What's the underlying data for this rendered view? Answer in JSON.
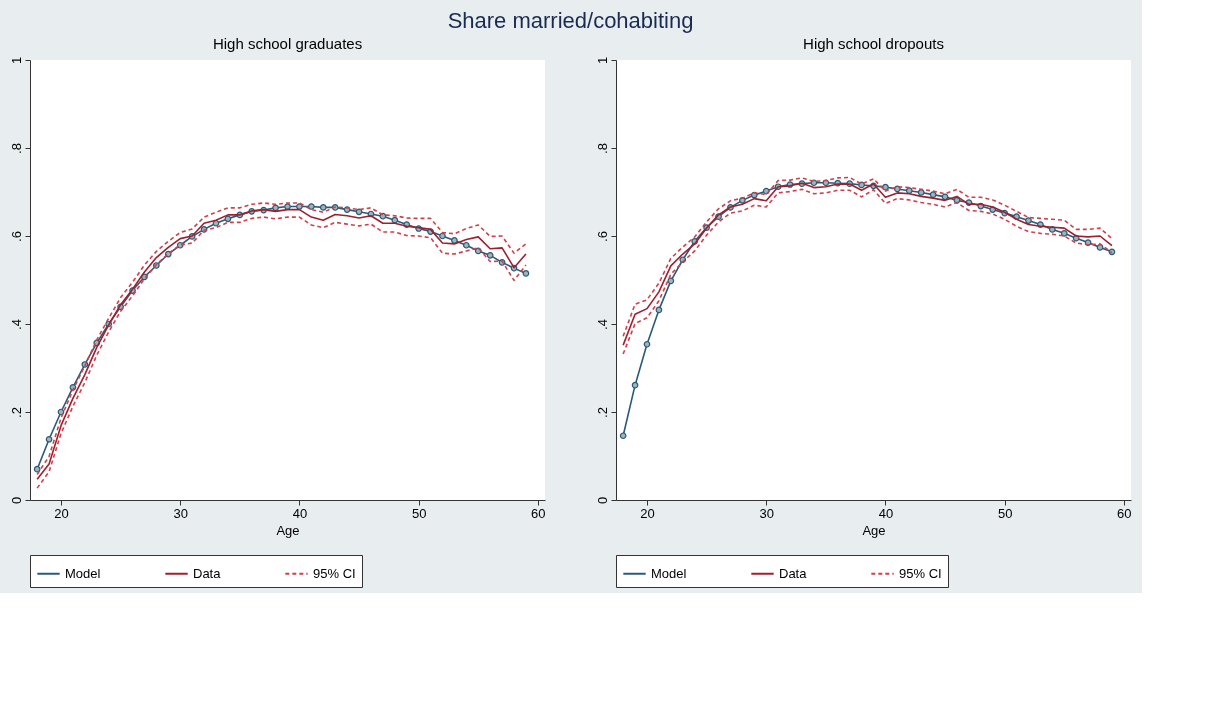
{
  "chart_data": [
    {
      "type": "line",
      "title": "Share married/cohabiting",
      "subtitle": "High school graduates",
      "xlabel": "Age",
      "x": [
        18,
        19,
        20,
        21,
        22,
        23,
        24,
        25,
        26,
        27,
        28,
        29,
        30,
        31,
        32,
        33,
        34,
        35,
        36,
        37,
        38,
        39,
        40,
        41,
        42,
        43,
        44,
        45,
        46,
        47,
        48,
        49,
        50,
        51,
        52,
        53,
        54,
        55,
        56,
        57,
        58,
        59
      ],
      "xlim": [
        17.4,
        60.6
      ],
      "xticks": [
        20,
        30,
        40,
        50,
        60
      ],
      "ylim": [
        0,
        1
      ],
      "yticks": [
        0,
        {
          "value": 0.2,
          "label": ".2"
        },
        {
          "value": 0.4,
          "label": ".4"
        },
        {
          "value": 0.6,
          "label": ".6"
        },
        {
          "value": 0.8,
          "label": ".8"
        },
        1
      ],
      "grid": false,
      "legend": "bottom",
      "series": [
        {
          "name": "Model",
          "color": "#2a5a78",
          "marker": "circle",
          "line_style": "solid",
          "values": [
            0.07,
            0.138,
            0.2,
            0.256,
            0.308,
            0.357,
            0.4,
            0.439,
            0.476,
            0.507,
            0.533,
            0.559,
            0.579,
            0.599,
            0.615,
            0.629,
            0.639,
            0.648,
            0.656,
            0.659,
            0.664,
            0.667,
            0.667,
            0.667,
            0.665,
            0.665,
            0.66,
            0.655,
            0.65,
            0.645,
            0.636,
            0.626,
            0.617,
            0.61,
            0.6,
            0.59,
            0.579,
            0.566,
            0.556,
            0.54,
            0.527,
            0.515
          ]
        },
        {
          "name": "Data",
          "color": "#9e1f2e",
          "line_style": "solid",
          "values": [
            0.047,
            0.082,
            0.169,
            0.231,
            0.285,
            0.347,
            0.398,
            0.444,
            0.479,
            0.518,
            0.551,
            0.574,
            0.594,
            0.6,
            0.629,
            0.636,
            0.648,
            0.648,
            0.657,
            0.66,
            0.656,
            0.66,
            0.66,
            0.643,
            0.636,
            0.649,
            0.646,
            0.641,
            0.646,
            0.629,
            0.629,
            0.622,
            0.619,
            0.615,
            0.584,
            0.582,
            0.592,
            0.598,
            0.571,
            0.573,
            0.528,
            0.559
          ]
        },
        {
          "name": "95% CI",
          "color": "#d0404c",
          "line_style": "dashed",
          "values": [
            0.058,
            0.099,
            0.186,
            0.25,
            0.305,
            0.364,
            0.413,
            0.46,
            0.495,
            0.534,
            0.565,
            0.588,
            0.608,
            0.616,
            0.643,
            0.654,
            0.664,
            0.664,
            0.672,
            0.675,
            0.672,
            0.675,
            0.675,
            0.66,
            0.654,
            0.666,
            0.664,
            0.66,
            0.664,
            0.648,
            0.646,
            0.641,
            0.64,
            0.64,
            0.608,
            0.605,
            0.617,
            0.625,
            0.599,
            0.6,
            0.561,
            0.582
          ]
        },
        {
          "color": "#d0404c",
          "line_style": "dashed",
          "values": [
            0.027,
            0.064,
            0.151,
            0.213,
            0.267,
            0.329,
            0.382,
            0.429,
            0.464,
            0.503,
            0.535,
            0.56,
            0.58,
            0.584,
            0.613,
            0.619,
            0.631,
            0.631,
            0.64,
            0.643,
            0.639,
            0.643,
            0.643,
            0.625,
            0.619,
            0.631,
            0.627,
            0.623,
            0.627,
            0.609,
            0.609,
            0.601,
            0.6,
            0.596,
            0.561,
            0.559,
            0.566,
            0.573,
            0.542,
            0.543,
            0.499,
            0.534
          ]
        }
      ]
    },
    {
      "type": "line",
      "subtitle": "High school dropouts",
      "xlabel": "Age",
      "x": [
        18,
        19,
        20,
        21,
        22,
        23,
        24,
        25,
        26,
        27,
        28,
        29,
        30,
        31,
        32,
        33,
        34,
        35,
        36,
        37,
        38,
        39,
        40,
        41,
        42,
        43,
        44,
        45,
        46,
        47,
        48,
        49,
        50,
        51,
        52,
        53,
        54,
        55,
        56,
        57,
        58,
        59
      ],
      "xlim": [
        17.4,
        60.6
      ],
      "xticks": [
        20,
        30,
        40,
        50,
        60
      ],
      "ylim": [
        0,
        1
      ],
      "yticks": [
        0,
        {
          "value": 0.2,
          "label": ".2"
        },
        {
          "value": 0.4,
          "label": ".4"
        },
        {
          "value": 0.6,
          "label": ".6"
        },
        {
          "value": 0.8,
          "label": ".8"
        },
        1
      ],
      "grid": false,
      "legend": "bottom",
      "series": [
        {
          "name": "Model",
          "color": "#2a5a78",
          "marker": "circle",
          "line_style": "solid",
          "values": [
            0.146,
            0.261,
            0.354,
            0.432,
            0.498,
            0.546,
            0.588,
            0.619,
            0.644,
            0.665,
            0.681,
            0.693,
            0.702,
            0.712,
            0.717,
            0.719,
            0.721,
            0.721,
            0.72,
            0.719,
            0.716,
            0.714,
            0.711,
            0.707,
            0.703,
            0.699,
            0.694,
            0.689,
            0.681,
            0.676,
            0.668,
            0.66,
            0.652,
            0.644,
            0.635,
            0.626,
            0.615,
            0.606,
            0.595,
            0.585,
            0.574,
            0.564
          ]
        },
        {
          "name": "Data",
          "color": "#9e1f2e",
          "line_style": "solid",
          "values": [
            0.352,
            0.422,
            0.435,
            0.473,
            0.532,
            0.559,
            0.582,
            0.618,
            0.648,
            0.666,
            0.672,
            0.685,
            0.68,
            0.712,
            0.714,
            0.72,
            0.71,
            0.712,
            0.718,
            0.718,
            0.704,
            0.718,
            0.688,
            0.698,
            0.696,
            0.69,
            0.686,
            0.681,
            0.69,
            0.672,
            0.672,
            0.666,
            0.654,
            0.638,
            0.626,
            0.622,
            0.62,
            0.618,
            0.6,
            0.598,
            0.6,
            0.578
          ]
        },
        {
          "name": "95% CI",
          "color": "#d0404c",
          "line_style": "dashed",
          "values": [
            0.372,
            0.445,
            0.455,
            0.493,
            0.549,
            0.575,
            0.598,
            0.632,
            0.662,
            0.68,
            0.686,
            0.698,
            0.694,
            0.726,
            0.727,
            0.732,
            0.724,
            0.726,
            0.732,
            0.733,
            0.718,
            0.73,
            0.702,
            0.712,
            0.71,
            0.706,
            0.702,
            0.696,
            0.706,
            0.688,
            0.688,
            0.682,
            0.67,
            0.656,
            0.642,
            0.64,
            0.638,
            0.636,
            0.615,
            0.615,
            0.618,
            0.594
          ]
        },
        {
          "color": "#d0404c",
          "line_style": "dashed",
          "values": [
            0.332,
            0.401,
            0.414,
            0.453,
            0.513,
            0.541,
            0.566,
            0.602,
            0.632,
            0.652,
            0.657,
            0.67,
            0.666,
            0.698,
            0.701,
            0.706,
            0.696,
            0.698,
            0.704,
            0.704,
            0.689,
            0.705,
            0.674,
            0.685,
            0.682,
            0.676,
            0.672,
            0.666,
            0.676,
            0.658,
            0.656,
            0.65,
            0.638,
            0.622,
            0.61,
            0.606,
            0.604,
            0.6,
            0.584,
            0.58,
            0.582,
            0.562
          ]
        }
      ]
    }
  ]
}
